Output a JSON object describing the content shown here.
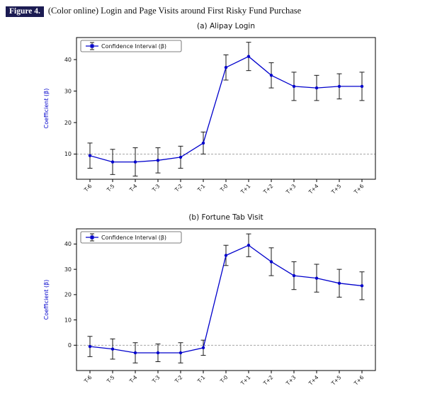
{
  "figure_caption": {
    "label": "Figure 4.",
    "text": "(Color online) Login and Page Visits around First Risky Fund Purchase"
  },
  "colors": {
    "line": "#0000cc",
    "error_bar": "#1a1a1a",
    "ylabel": "#0000cc",
    "tick_label": "#111111",
    "ref_line": "#999999",
    "caption_label_bg": "#1b1b52"
  },
  "chart_data": [
    {
      "type": "line",
      "title": "(a) Alipay Login",
      "legend": "Confidence Interval (β)",
      "legend_position": "upper left",
      "ylabel": "Coefficient (β)",
      "xlabel": "",
      "grid": false,
      "categories": [
        "T-6",
        "T-5",
        "T-4",
        "T-3",
        "T-2",
        "T-1",
        "T-0",
        "T+1",
        "T+2",
        "T+3",
        "T+4",
        "T+5",
        "T+6"
      ],
      "values": [
        9.5,
        7.5,
        7.5,
        8,
        9,
        13.5,
        37.5,
        41,
        35,
        31.5,
        31,
        31.5,
        31.5
      ],
      "errors": [
        4,
        4,
        4.5,
        4,
        3.5,
        3.5,
        4,
        4.5,
        4,
        4.5,
        4,
        4,
        4.5
      ],
      "ref_line": 10,
      "yticks": [
        10,
        20,
        30,
        40
      ],
      "ylim": [
        2,
        47
      ]
    },
    {
      "type": "line",
      "title": "(b) Fortune Tab Visit",
      "legend": "Confidence Interval (β)",
      "legend_position": "upper left",
      "ylabel": "Coefficient (β)",
      "xlabel": "",
      "grid": false,
      "categories": [
        "T-6",
        "T-5",
        "T-4",
        "T-3",
        "T-2",
        "T-1",
        "T-0",
        "T+1",
        "T+2",
        "T+3",
        "T+4",
        "T+5",
        "T+6"
      ],
      "values": [
        -0.5,
        -1.5,
        -3,
        -3,
        -3,
        -1,
        35.5,
        39.5,
        33,
        27.5,
        26.5,
        24.5,
        23.5
      ],
      "errors": [
        4,
        4,
        4,
        3.5,
        4,
        3,
        4,
        4.5,
        5.5,
        5.5,
        5.5,
        5.5,
        5.5
      ],
      "ref_line": 0,
      "yticks": [
        0,
        10,
        20,
        30,
        40
      ],
      "ylim": [
        -10,
        46
      ]
    }
  ]
}
